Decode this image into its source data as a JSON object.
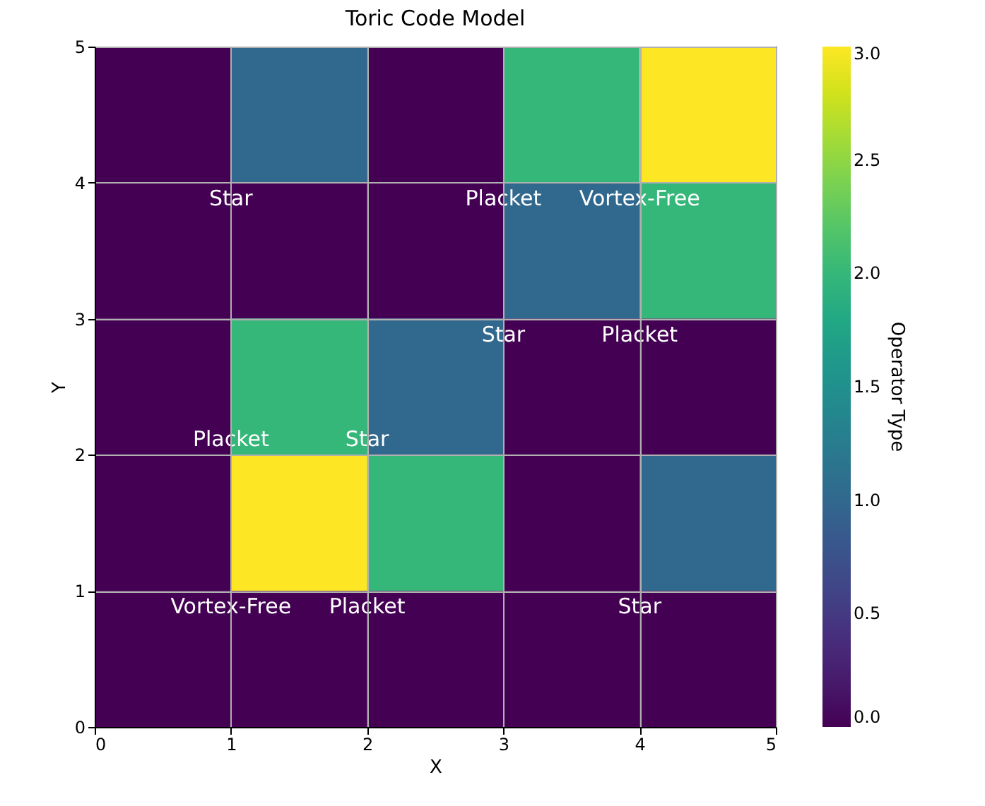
{
  "chart_data": {
    "type": "heatmap",
    "title": "Toric Code Model",
    "xlabel": "X",
    "ylabel": "Y",
    "clabel": "Operator Type",
    "xlim": [
      0,
      5
    ],
    "xticks": [
      0,
      1,
      2,
      3,
      4,
      5
    ],
    "ylim": [
      0,
      5
    ],
    "yticks": [
      0,
      1,
      2,
      3,
      4,
      5
    ],
    "grid": true,
    "cells": [
      [
        0,
        1,
        0,
        2,
        3
      ],
      [
        0,
        0,
        0,
        1,
        2
      ],
      [
        0,
        2,
        1,
        0,
        0
      ],
      [
        0,
        3,
        2,
        0,
        1
      ],
      [
        0,
        0,
        0,
        0,
        0
      ]
    ],
    "clim": [
      0,
      3
    ],
    "cticks": [
      {
        "value": 0,
        "label": "0.0"
      },
      {
        "value": 0.5,
        "label": "0.5"
      },
      {
        "value": 1,
        "label": "1.0"
      },
      {
        "value": 1.5,
        "label": "1.5"
      },
      {
        "value": 2,
        "label": "2.0"
      },
      {
        "value": 2.5,
        "label": "2.5"
      },
      {
        "value": 3,
        "label": "3.0"
      }
    ],
    "annotations": [
      "Star",
      "Placket",
      "Vortex-Free",
      "Star",
      "Placket",
      "Placket",
      "Star",
      "Vortex-Free",
      "Placket",
      "Star"
    ]
  }
}
